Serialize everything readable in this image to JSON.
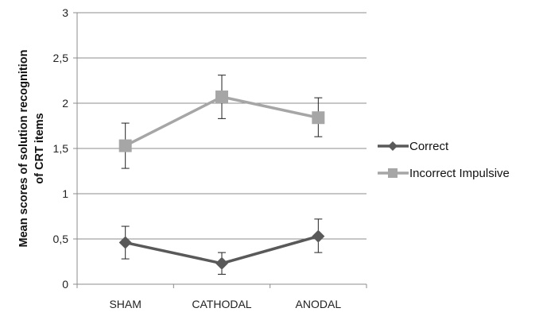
{
  "chart_data": {
    "type": "line",
    "categories": [
      "SHAM",
      "CATHODAL",
      "ANODAL"
    ],
    "ylabel": "Mean scores of  solution recognition of CRT items",
    "ylabel_lines": [
      "Mean scores of  solution recognition",
      "of CRT items"
    ],
    "ylim": [
      0,
      3
    ],
    "yticks": [
      0,
      0.5,
      1,
      1.5,
      2,
      2.5,
      3
    ],
    "ytick_labels": [
      "0",
      "0,5",
      "1",
      "1,5",
      "2",
      "2,5",
      "3"
    ],
    "grid": true,
    "legend_position": "right",
    "series": [
      {
        "name": "Correct",
        "values": [
          0.46,
          0.23,
          0.53
        ],
        "error_low": [
          0.28,
          0.11,
          0.35
        ],
        "error_high": [
          0.64,
          0.35,
          0.72
        ],
        "color": "#595959",
        "marker": "diamond"
      },
      {
        "name": "Incorrect Impulsive",
        "values": [
          1.53,
          2.07,
          1.84
        ],
        "error_low": [
          1.28,
          1.83,
          1.63
        ],
        "error_high": [
          1.78,
          2.31,
          2.06
        ],
        "color": "#a6a6a6",
        "marker": "square"
      }
    ]
  }
}
